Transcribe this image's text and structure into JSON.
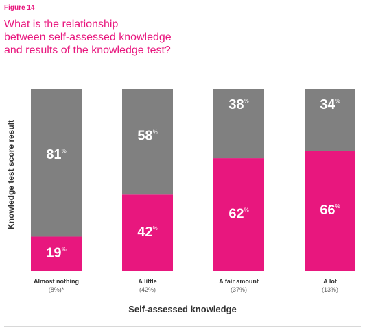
{
  "figure_label": "Figure 14",
  "title_lines": [
    "What is the relationship",
    "between self-assessed knowledge",
    "and results of the knowledge test?"
  ],
  "colors": {
    "accent": "#e8177e",
    "gray_bar": "#808080",
    "text": "#333333"
  },
  "chart_data": {
    "type": "bar",
    "stacked": true,
    "percent_symbol": "%",
    "categories": [
      "Almost nothing",
      "A little",
      "A fair amount",
      "A lot"
    ],
    "category_shares": [
      "(8%)*",
      "(42%)",
      "(37%)",
      "(13%)"
    ],
    "series": [
      {
        "values": [
          19,
          42,
          62,
          66
        ],
        "color": "#e8177e"
      },
      {
        "values": [
          81,
          58,
          38,
          34
        ],
        "color": "#808080"
      }
    ],
    "ylim": [
      0,
      100
    ],
    "xlabel": "Self-assessed knowledge",
    "ylabel": "Knowledge test score result",
    "grid": false,
    "legend": false
  }
}
